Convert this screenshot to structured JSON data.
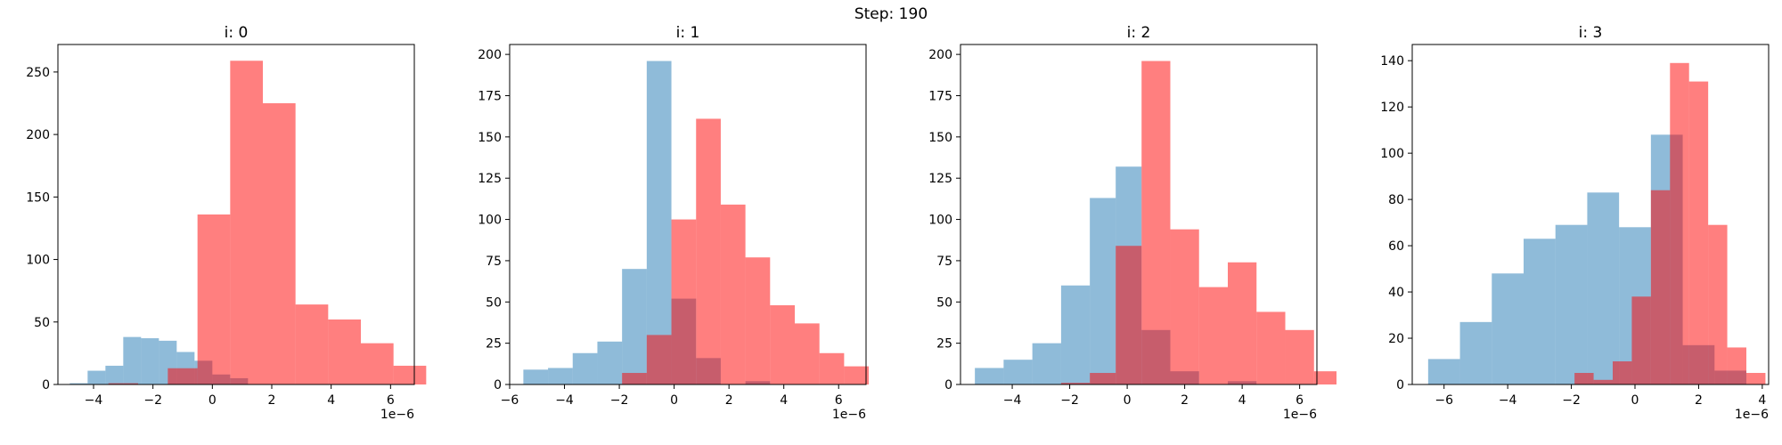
{
  "figure": {
    "suptitle": "Step: 190"
  },
  "colors": {
    "blue": "#1f77b4",
    "red": "#ff0000",
    "bar_alpha": 0.5
  },
  "chart_data": [
    {
      "type": "bar",
      "title": "i: 0",
      "offset_label": "1e−6",
      "xlim": [
        -5.2,
        6.8
      ],
      "ylim": [
        0,
        272
      ],
      "xticks": [
        -4,
        -2,
        0,
        2,
        4,
        6
      ],
      "xtick_labels": [
        "−4",
        "−2",
        "0",
        "2",
        "4",
        "6"
      ],
      "yticks": [
        0,
        50,
        100,
        150,
        200,
        250
      ],
      "ytick_labels": [
        "0",
        "50",
        "100",
        "150",
        "200",
        "250"
      ],
      "series": [
        {
          "color": "blue",
          "edges": [
            -4.8,
            -4.2,
            -3.6,
            -3.0,
            -2.4,
            -1.8,
            -1.2,
            -0.6,
            0.0,
            0.6,
            1.2
          ],
          "counts": [
            1,
            11,
            15,
            38,
            37,
            35,
            26,
            19,
            8,
            5
          ]
        },
        {
          "color": "red",
          "edges": [
            -3.5,
            -2.5,
            -1.5,
            -0.5,
            0.6,
            1.7,
            2.8,
            3.9,
            5.0,
            6.1,
            7.2
          ],
          "counts": [
            1,
            0,
            13,
            136,
            259,
            225,
            64,
            52,
            33,
            15
          ]
        }
      ]
    },
    {
      "type": "bar",
      "title": "i: 1",
      "offset_label": "1e−6",
      "xlim": [
        -6.0,
        7.0
      ],
      "ylim": [
        0,
        206
      ],
      "xticks": [
        -6,
        -4,
        -2,
        0,
        2,
        4,
        6
      ],
      "xtick_labels": [
        "−6",
        "−4",
        "−2",
        "0",
        "2",
        "4",
        "6"
      ],
      "yticks": [
        0,
        25,
        50,
        75,
        100,
        125,
        150,
        175,
        200
      ],
      "ytick_labels": [
        "0",
        "25",
        "50",
        "75",
        "100",
        "125",
        "150",
        "175",
        "200"
      ],
      "series": [
        {
          "color": "blue",
          "edges": [
            -5.5,
            -4.6,
            -3.7,
            -2.8,
            -1.9,
            -1.0,
            -0.1,
            0.8,
            1.7,
            2.6,
            3.5
          ],
          "counts": [
            9,
            10,
            19,
            26,
            70,
            196,
            52,
            16,
            0,
            2
          ]
        },
        {
          "color": "red",
          "edges": [
            -1.9,
            -1.0,
            -0.1,
            0.8,
            1.7,
            2.6,
            3.5,
            4.4,
            5.3,
            6.2,
            7.1
          ],
          "counts": [
            7,
            30,
            100,
            161,
            109,
            77,
            48,
            37,
            19,
            11
          ]
        }
      ]
    },
    {
      "type": "bar",
      "title": "i: 2",
      "offset_label": "1e−6",
      "xlim": [
        -5.8,
        6.6
      ],
      "ylim": [
        0,
        206
      ],
      "xticks": [
        -4,
        -2,
        0,
        2,
        4,
        6
      ],
      "xtick_labels": [
        "−4",
        "−2",
        "0",
        "2",
        "4",
        "6"
      ],
      "yticks": [
        0,
        25,
        50,
        75,
        100,
        125,
        150,
        175,
        200
      ],
      "ytick_labels": [
        "0",
        "25",
        "50",
        "75",
        "100",
        "125",
        "150",
        "175",
        "200"
      ],
      "series": [
        {
          "color": "blue",
          "edges": [
            -5.3,
            -4.3,
            -3.3,
            -2.3,
            -1.3,
            -0.4,
            0.5,
            1.5,
            2.5,
            3.5,
            4.5
          ],
          "counts": [
            10,
            15,
            25,
            60,
            113,
            132,
            33,
            8,
            0,
            2
          ]
        },
        {
          "color": "red",
          "edges": [
            -2.3,
            -1.3,
            -0.4,
            0.5,
            1.5,
            2.5,
            3.5,
            4.5,
            5.5,
            6.5,
            7.5
          ],
          "counts": [
            1,
            7,
            84,
            196,
            94,
            59,
            74,
            44,
            33,
            8
          ]
        }
      ]
    },
    {
      "type": "bar",
      "title": "i: 3",
      "offset_label": "1e−6",
      "xlim": [
        -7.0,
        4.2
      ],
      "ylim": [
        0,
        147
      ],
      "xticks": [
        -6,
        -4,
        -2,
        0,
        2,
        4
      ],
      "xtick_labels": [
        "−6",
        "−4",
        "−2",
        "0",
        "2",
        "4"
      ],
      "yticks": [
        0,
        20,
        40,
        60,
        80,
        100,
        120,
        140
      ],
      "ytick_labels": [
        "0",
        "20",
        "40",
        "60",
        "80",
        "100",
        "120",
        "140"
      ],
      "series": [
        {
          "color": "blue",
          "edges": [
            -6.5,
            -5.5,
            -4.5,
            -3.5,
            -2.5,
            -1.5,
            -0.5,
            0.5,
            1.5,
            2.5,
            3.5
          ],
          "counts": [
            11,
            27,
            48,
            63,
            69,
            83,
            68,
            108,
            17,
            6
          ]
        },
        {
          "color": "red",
          "edges": [
            -1.9,
            -1.3,
            -0.7,
            -0.1,
            0.5,
            1.1,
            1.7,
            2.3,
            2.9,
            3.5,
            4.1
          ],
          "counts": [
            5,
            2,
            10,
            38,
            84,
            139,
            131,
            69,
            16,
            5
          ]
        }
      ]
    }
  ]
}
